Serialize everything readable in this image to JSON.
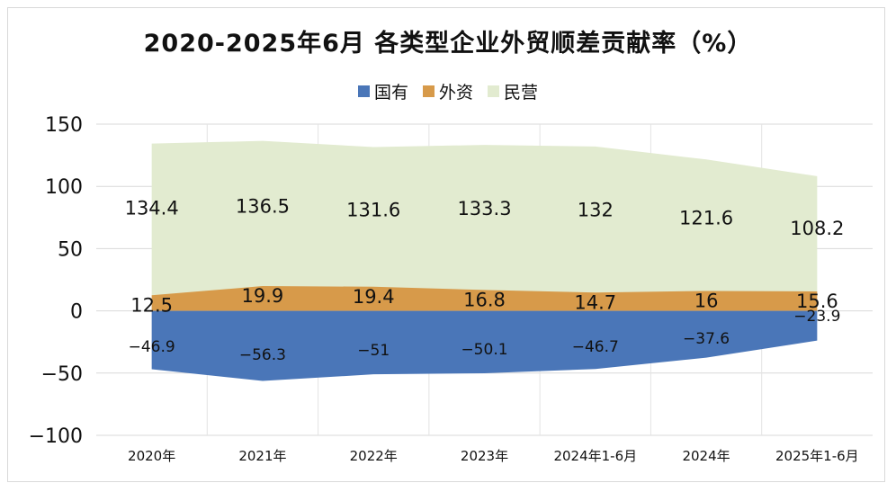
{
  "title": "2020-2025年6月 各类型企业外贸顺差贡献率（%）",
  "chart_data": {
    "type": "area",
    "title": "2020-2025年6月 各类型企业外贸顺差贡献率（%）",
    "categories": [
      "2020年",
      "2021年",
      "2022年",
      "2023年",
      "2024年1-6月",
      "2024年",
      "2025年1-6月"
    ],
    "ylim": [
      -100,
      150
    ],
    "yticks": [
      150,
      100,
      50,
      0,
      -50,
      -100
    ],
    "grid": true,
    "legend_position": "top",
    "series": [
      {
        "name": "国有",
        "color": "#4a76b8",
        "values": [
          -46.9,
          -56.3,
          -51,
          -50.1,
          -46.7,
          -37.6,
          -23.9
        ]
      },
      {
        "name": "外资",
        "color": "#d79a4a",
        "values": [
          12.5,
          19.9,
          19.4,
          16.8,
          14.7,
          16,
          15.6
        ]
      },
      {
        "name": "民营",
        "color": "#e2ebd0",
        "values": [
          134.4,
          136.5,
          131.6,
          133.3,
          132,
          121.6,
          108.2
        ]
      }
    ]
  }
}
